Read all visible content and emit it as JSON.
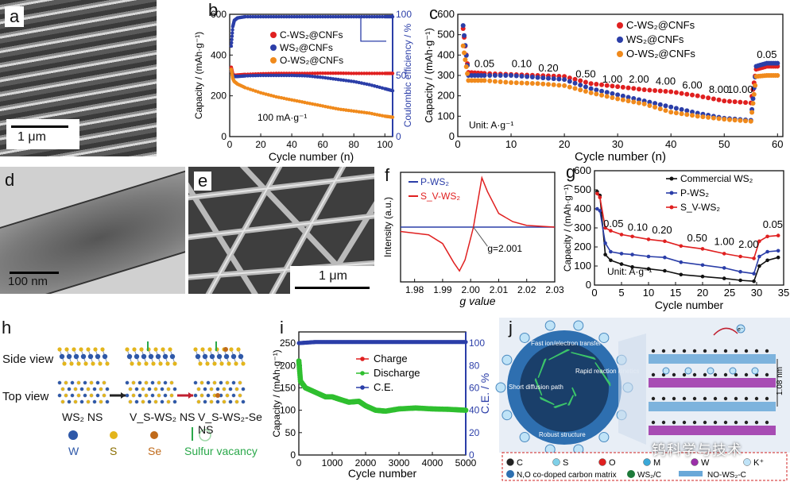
{
  "panel_labels": {
    "a": "a",
    "b": "b",
    "c": "c",
    "d": "d",
    "e": "e",
    "f": "f",
    "g": "g",
    "h": "h",
    "i": "i",
    "j": "j"
  },
  "scale_bars": {
    "a": "1 μm",
    "d": "100 nm",
    "e": "1 μm"
  },
  "watermark": "钨科学与技术",
  "colors": {
    "red": "#e02020",
    "blue": "#2b3ea8",
    "orange": "#f08a1c",
    "black": "#111111",
    "green": "#2fbf2f",
    "axis_blue": "#2b3ea8"
  },
  "chart_data": [
    {
      "id": "b",
      "type": "scatter",
      "xlabel": "Cycle number (n)",
      "ylabel": "Capacity / (mAh·g⁻¹)",
      "y2label": "Coulombic efficiency / %",
      "xlim": [
        0,
        105
      ],
      "ylim": [
        0,
        600
      ],
      "y2lim": [
        0,
        100
      ],
      "xticks": [
        0,
        20,
        40,
        60,
        80,
        100
      ],
      "yticks": [
        0,
        200,
        400,
        600
      ],
      "y2ticks": [
        0,
        50,
        100
      ],
      "annotation": "100 mA·g⁻¹",
      "legend": [
        "C-WS₂@CNFs",
        "WS₂@CNFs",
        "O-WS₂@CNFs"
      ],
      "legend_position": "top-center",
      "series": [
        {
          "name": "C-WS₂@CNFs",
          "color": "red",
          "axis": "y",
          "x": [
            1,
            2,
            3,
            5,
            10,
            20,
            30,
            40,
            50,
            60,
            70,
            80,
            90,
            100,
            105
          ],
          "y": [
            340,
            305,
            300,
            302,
            305,
            308,
            310,
            310,
            310,
            311,
            311,
            310,
            310,
            310,
            310
          ]
        },
        {
          "name": "WS₂@CNFs",
          "color": "blue",
          "axis": "y",
          "x": [
            1,
            2,
            3,
            5,
            10,
            20,
            30,
            40,
            50,
            60,
            70,
            80,
            90,
            100,
            105
          ],
          "y": [
            320,
            300,
            295,
            295,
            298,
            300,
            300,
            300,
            298,
            290,
            280,
            270,
            255,
            235,
            225
          ]
        },
        {
          "name": "O-WS₂@CNFs",
          "color": "orange",
          "axis": "y",
          "x": [
            1,
            2,
            3,
            5,
            10,
            20,
            30,
            40,
            50,
            60,
            70,
            80,
            90,
            100,
            105
          ],
          "y": [
            330,
            285,
            270,
            258,
            240,
            215,
            195,
            180,
            165,
            150,
            135,
            125,
            115,
            100,
            95
          ]
        },
        {
          "name": "",
          "color": "blue",
          "axis": "y2",
          "x": [
            1,
            2,
            3,
            5,
            10,
            20,
            30,
            40,
            50,
            60,
            70,
            80,
            90,
            100,
            105
          ],
          "y": [
            74,
            90,
            95,
            97,
            98,
            98,
            98,
            98,
            98,
            98,
            98,
            98,
            98,
            98,
            98
          ]
        }
      ]
    },
    {
      "id": "c",
      "type": "scatter",
      "xlabel": "Cycle number (n)",
      "ylabel": "Capacity / (mAh·g⁻¹)",
      "xlim": [
        0,
        61
      ],
      "ylim": [
        0,
        600
      ],
      "xticks": [
        0,
        10,
        20,
        30,
        40,
        50,
        60
      ],
      "yticks": [
        0,
        100,
        200,
        300,
        400,
        500,
        600
      ],
      "unit_label": "Unit: A·g⁻¹",
      "rate_labels": [
        {
          "text": "0.05",
          "x": 5,
          "y": 340
        },
        {
          "text": "0.10",
          "x": 12,
          "y": 340
        },
        {
          "text": "0.20",
          "x": 17,
          "y": 320
        },
        {
          "text": "0.50",
          "x": 24,
          "y": 290
        },
        {
          "text": "1.00",
          "x": 29,
          "y": 265
        },
        {
          "text": "2.00",
          "x": 34,
          "y": 265
        },
        {
          "text": "4.00",
          "x": 39,
          "y": 255
        },
        {
          "text": "6.00",
          "x": 44,
          "y": 235
        },
        {
          "text": "8.00",
          "x": 49,
          "y": 215
        },
        {
          "text": "10.00",
          "x": 53,
          "y": 215
        },
        {
          "text": "0.05",
          "x": 58,
          "y": 385
        }
      ],
      "legend": [
        "C-WS₂@CNFs",
        "WS₂@CNFs",
        "O-WS₂@CNFs"
      ],
      "legend_position": "top-right",
      "series": [
        {
          "name": "C-WS₂@CNFs",
          "color": "red",
          "x": [
            1,
            2,
            5,
            10,
            15,
            20,
            25,
            30,
            35,
            40,
            45,
            50,
            55,
            56,
            58,
            60
          ],
          "y": [
            530,
            315,
            310,
            305,
            300,
            295,
            260,
            245,
            230,
            220,
            200,
            175,
            165,
            330,
            345,
            345
          ]
        },
        {
          "name": "WS₂@CNFs",
          "color": "blue",
          "x": [
            1,
            2,
            5,
            10,
            15,
            20,
            25,
            30,
            35,
            40,
            45,
            50,
            55,
            56,
            58,
            60
          ],
          "y": [
            545,
            300,
            300,
            300,
            290,
            280,
            235,
            205,
            175,
            145,
            115,
            90,
            80,
            345,
            360,
            360
          ]
        },
        {
          "name": "O-WS₂@CNFs",
          "color": "orange",
          "x": [
            1,
            2,
            5,
            10,
            15,
            20,
            25,
            30,
            35,
            40,
            45,
            50,
            55,
            56,
            58,
            60
          ],
          "y": [
            445,
            275,
            275,
            265,
            260,
            250,
            215,
            185,
            160,
            120,
            100,
            85,
            75,
            295,
            300,
            300
          ]
        }
      ]
    },
    {
      "id": "f",
      "type": "line",
      "xlabel": "g value",
      "ylabel": "Intensity (a.u.)",
      "xlim": [
        1.975,
        2.03
      ],
      "xticks": [
        1.98,
        1.99,
        2.0,
        2.01,
        2.02,
        2.03
      ],
      "annotation": "g=2.001",
      "legend": [
        "P-WS₂",
        "S_V-WS₂"
      ],
      "legend_position": "top-left",
      "series": [
        {
          "name": "P-WS₂",
          "color": "blue",
          "x": [
            1.975,
            1.98,
            1.99,
            2.0,
            2.01,
            2.02,
            2.03
          ],
          "y": [
            0,
            0,
            0,
            0,
            0,
            0,
            0
          ]
        },
        {
          "name": "S_V-WS₂",
          "color": "red",
          "x": [
            1.975,
            1.985,
            1.99,
            1.994,
            1.996,
            1.998,
            2.0,
            2.001,
            2.002,
            2.004,
            2.006,
            2.01,
            2.015,
            2.02,
            2.03
          ],
          "y": [
            -0.08,
            -0.14,
            -0.3,
            -0.65,
            -0.8,
            -0.6,
            -0.2,
            0.0,
            0.3,
            0.9,
            0.65,
            0.25,
            0.1,
            0.03,
            0.0
          ]
        }
      ]
    },
    {
      "id": "g",
      "type": "line",
      "xlabel": "Cycle number",
      "ylabel": "Capacity / (mAh·g⁻¹)",
      "xlim": [
        0,
        35
      ],
      "ylim": [
        0,
        600
      ],
      "xticks": [
        0,
        5,
        10,
        15,
        20,
        25,
        30,
        35
      ],
      "yticks": [
        0,
        100,
        200,
        300,
        400,
        500,
        600
      ],
      "unit_label": "Unit: A·g⁻¹",
      "rate_labels": [
        {
          "text": "0.05",
          "x": 3.5,
          "y": 305
        },
        {
          "text": "0.10",
          "x": 8,
          "y": 285
        },
        {
          "text": "0.20",
          "x": 12.5,
          "y": 270
        },
        {
          "text": "0.50",
          "x": 19,
          "y": 230
        },
        {
          "text": "1.00",
          "x": 24,
          "y": 210
        },
        {
          "text": "2.00",
          "x": 28.5,
          "y": 195
        },
        {
          "text": "0.05",
          "x": 33,
          "y": 300
        }
      ],
      "legend": [
        "Commercial WS₂",
        "P-WS₂",
        "S_V-WS₂"
      ],
      "legend_position": "top-right",
      "series": [
        {
          "name": "Commercial WS₂",
          "color": "black",
          "x": [
            0.5,
            1,
            2,
            3,
            5,
            7,
            10,
            13,
            16,
            20,
            24,
            27,
            29.5,
            30.5,
            32,
            34
          ],
          "y": [
            490,
            470,
            160,
            130,
            110,
            95,
            85,
            75,
            55,
            45,
            35,
            25,
            20,
            100,
            130,
            145
          ]
        },
        {
          "name": "P-WS₂",
          "color": "blue",
          "x": [
            0.5,
            1,
            2,
            3,
            5,
            7,
            10,
            13,
            16,
            20,
            24,
            27,
            29.5,
            30.5,
            32,
            34
          ],
          "y": [
            400,
            390,
            220,
            175,
            165,
            160,
            150,
            145,
            120,
            105,
            90,
            70,
            60,
            150,
            175,
            180
          ]
        },
        {
          "name": "S_V-WS₂",
          "color": "red",
          "x": [
            0.5,
            1,
            2,
            3,
            5,
            7,
            10,
            13,
            16,
            20,
            24,
            27,
            29.5,
            30.5,
            32,
            34
          ],
          "y": [
            480,
            460,
            300,
            285,
            265,
            255,
            240,
            230,
            205,
            190,
            165,
            150,
            140,
            230,
            255,
            260
          ]
        }
      ]
    },
    {
      "id": "i",
      "type": "scatter",
      "xlabel": "Cycle number",
      "ylabel": "Capacity / (mAh·g⁻¹)",
      "y2label": "C.E. / %",
      "xlim": [
        0,
        5000
      ],
      "ylim": [
        0,
        275
      ],
      "y2lim": [
        0,
        110
      ],
      "xticks": [
        0,
        1000,
        2000,
        3000,
        4000,
        5000
      ],
      "yticks": [
        0,
        50,
        100,
        150,
        200,
        250
      ],
      "y2ticks": [
        0,
        20,
        40,
        60,
        80,
        100
      ],
      "legend": [
        "Charge",
        "Discharge",
        "C.E."
      ],
      "legend_position": "center-right",
      "series": [
        {
          "name": "Charge",
          "color": "red",
          "x": [
            1,
            50,
            200,
            500,
            800,
            1000,
            1200,
            1500,
            1800,
            2000,
            2300,
            2600,
            3000,
            3500,
            4000,
            4500,
            5000
          ],
          "y": [
            210,
            165,
            150,
            140,
            130,
            130,
            125,
            118,
            120,
            110,
            100,
            98,
            103,
            105,
            103,
            102,
            100
          ]
        },
        {
          "name": "Discharge",
          "color": "green",
          "x": [
            1,
            50,
            200,
            500,
            800,
            1000,
            1200,
            1500,
            1800,
            2000,
            2300,
            2600,
            3000,
            3500,
            4000,
            4500,
            5000
          ],
          "y": [
            210,
            165,
            150,
            140,
            130,
            130,
            125,
            118,
            120,
            110,
            100,
            98,
            103,
            105,
            103,
            102,
            100
          ]
        },
        {
          "name": "C.E.",
          "color": "blue",
          "axis": "y2",
          "x": [
            1,
            500,
            1000,
            1500,
            2000,
            2500,
            3000,
            3500,
            4000,
            4500,
            5000
          ],
          "y": [
            100,
            101,
            101,
            101,
            101,
            101,
            101,
            101,
            101,
            101,
            101
          ]
        }
      ]
    }
  ],
  "panel_h": {
    "side_view": "Side view",
    "top_view": "Top view",
    "captions": [
      "WS₂ NS",
      "V_S-WS₂ NS",
      "V_S-WS₂-Se NS"
    ],
    "legend": [
      {
        "label": "W",
        "color": "#2e58a8"
      },
      {
        "label": "S",
        "color": "#e3b51c"
      },
      {
        "label": "Se",
        "color": "#c06a1a"
      }
    ],
    "vacancy_label": "Sulfur vacancy"
  },
  "panel_j": {
    "sphere_texts": [
      "Fast ion/electron transfer",
      "Rapid reaction kinetics",
      "Robust structure",
      "Short diffusion path"
    ],
    "interlayer": "1.08 nm",
    "legend": [
      {
        "label": "C",
        "color": "#222222"
      },
      {
        "label": "S",
        "color": "#7fd0e8"
      },
      {
        "label": "O",
        "color": "#e02020"
      },
      {
        "label": "M",
        "color": "#3aa8d8"
      },
      {
        "label": "W",
        "color": "#9b2fa8"
      },
      {
        "label": "K⁺",
        "color": "#bfe3f7"
      }
    ],
    "legend2": [
      "N,O co-doped carbon matrix",
      "WS₂/C",
      "NO-WS₂-C"
    ],
    "ion_label": "K⁺",
    "electron": "e⁻"
  }
}
